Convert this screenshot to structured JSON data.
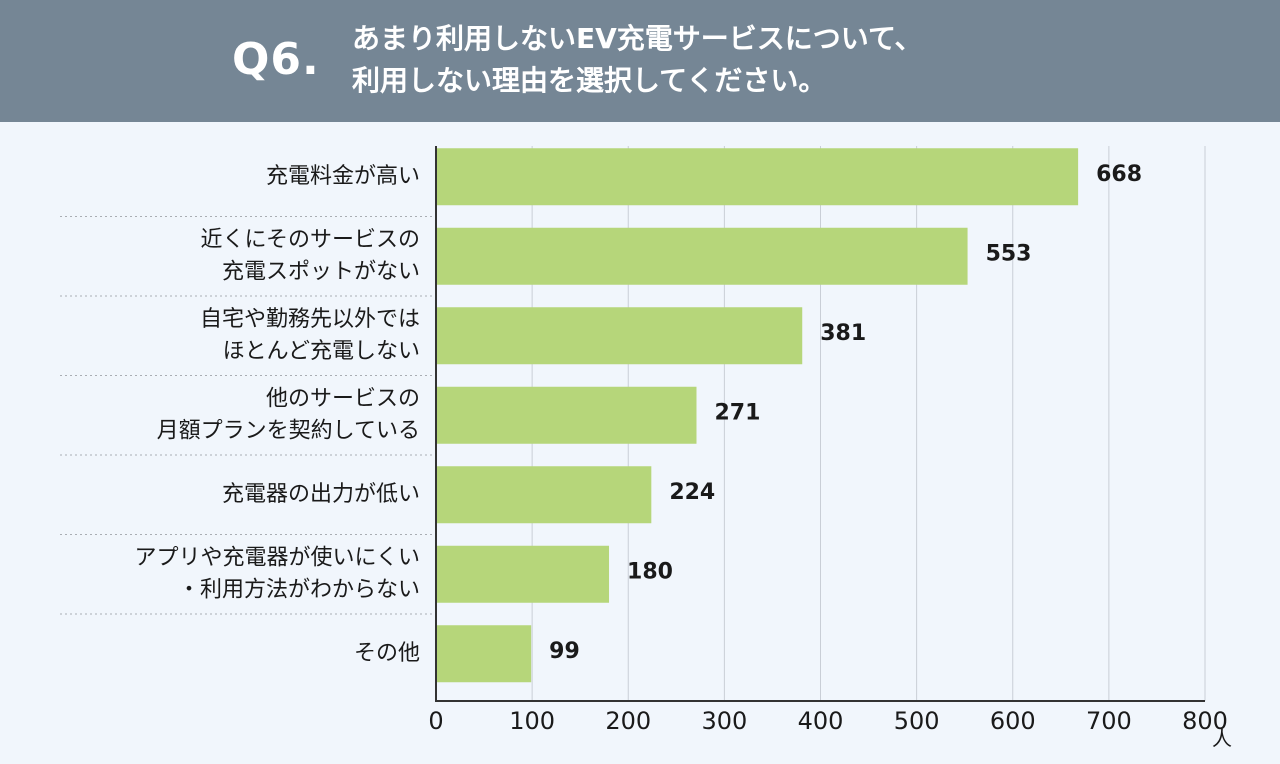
{
  "header": {
    "q_label": "Q6.",
    "question_lines": [
      "あまり利用しないEV充電サービスについて、",
      "利用しない理由を選択してください。"
    ]
  },
  "colors": {
    "header_bg": "#758695",
    "page_bg": "#f1f6fc",
    "bar": "#b6d67a",
    "grid": "#c9ced6",
    "axis": "#333333",
    "separator": "#a9adb3",
    "text": "#1a1a1a"
  },
  "chart_data": {
    "type": "bar",
    "orientation": "horizontal",
    "title": "",
    "xlabel": "",
    "ylabel": "",
    "unit": "人",
    "xlim": [
      0,
      800
    ],
    "x_ticks": [
      "0",
      "100",
      "200",
      "300",
      "400",
      "500",
      "600",
      "700",
      "800"
    ],
    "x_tick_values": [
      0,
      100,
      200,
      300,
      400,
      500,
      600,
      700,
      800
    ],
    "grid": true,
    "categories": [
      [
        "充電料金が高い"
      ],
      [
        "近くにそのサービスの",
        "充電スポットがない"
      ],
      [
        "自宅や勤務先以外では",
        "ほとんど充電しない"
      ],
      [
        "他のサービスの",
        "月額プランを契約している"
      ],
      [
        "充電器の出力が低い"
      ],
      [
        "アプリや充電器が使いにくい",
        "・利用方法がわからない"
      ],
      [
        "その他"
      ]
    ],
    "values": [
      668,
      553,
      381,
      271,
      224,
      180,
      99
    ],
    "value_labels": [
      "668",
      "553",
      "381",
      "271",
      "224",
      "180",
      "99"
    ]
  }
}
